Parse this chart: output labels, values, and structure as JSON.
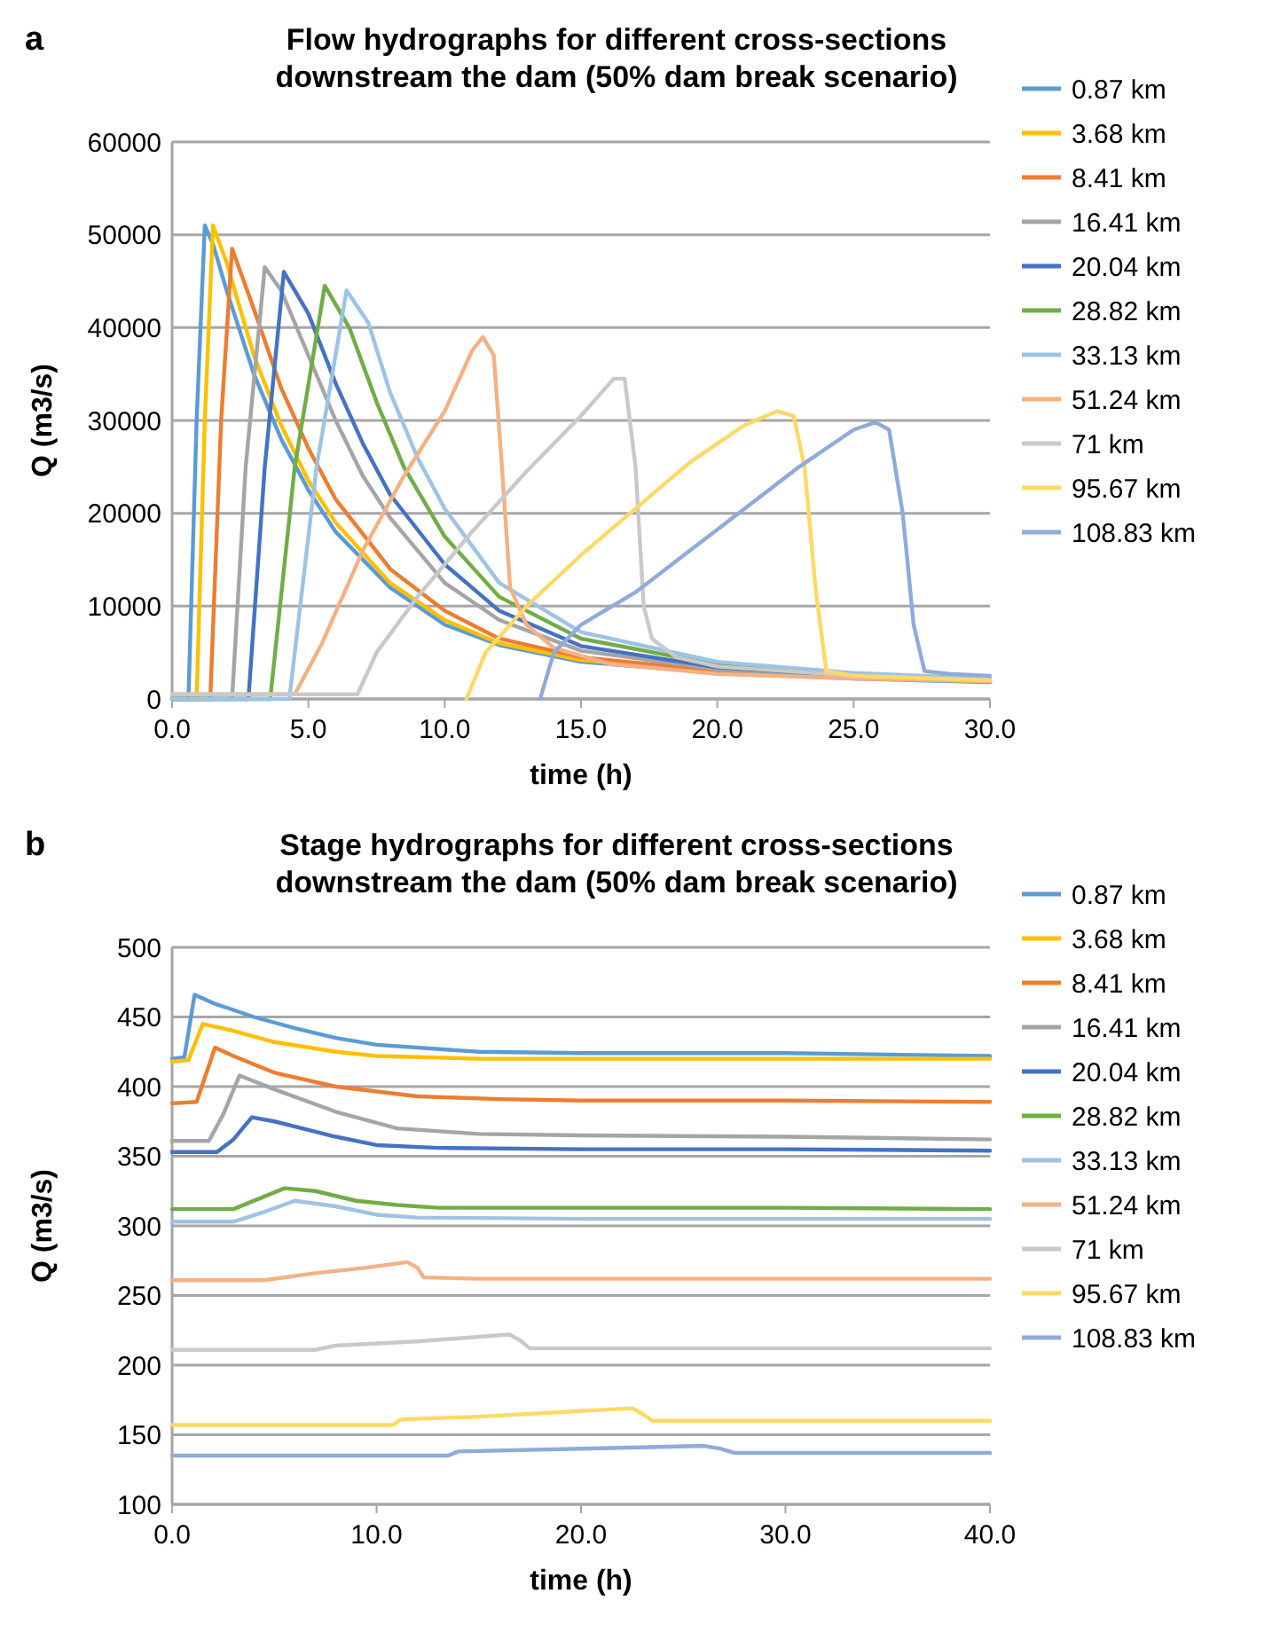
{
  "chart_data": [
    {
      "type": "line",
      "title": "Flow hydrographs for different cross-sections downstream the dam (50% dam break scenario)",
      "xlabel": "time (h)",
      "ylabel": "Q (m3/s)",
      "annotations": [
        "a"
      ],
      "xlim": [
        0,
        30
      ],
      "ylim": [
        0,
        60000
      ],
      "xticks": [
        {
          "value": 0,
          "label": "0.0"
        },
        {
          "value": 5,
          "label": "5.0"
        },
        {
          "value": 10,
          "label": "10.0"
        },
        {
          "value": 15,
          "label": "15.0"
        },
        {
          "value": 20,
          "label": "20.0"
        },
        {
          "value": 25,
          "label": "25.0"
        },
        {
          "value": 30,
          "label": "30.0"
        }
      ],
      "yticks": [
        0,
        10000,
        20000,
        30000,
        40000,
        50000,
        60000
      ],
      "grid": "y",
      "legend": "right",
      "series": [
        {
          "name": "0.87 km",
          "color": "#5b9bd5",
          "x": [
            0,
            0.6,
            0.9,
            1.2,
            1.5,
            2,
            3,
            4,
            5,
            6,
            8,
            10,
            12,
            15,
            20,
            25,
            30
          ],
          "values": [
            0,
            0,
            30000,
            51000,
            49000,
            44000,
            35000,
            28000,
            22500,
            18000,
            12000,
            8000,
            5800,
            4000,
            2800,
            2200,
            1800
          ]
        },
        {
          "name": "3.68 km",
          "color": "#ffc000",
          "x": [
            0,
            0.9,
            1.2,
            1.5,
            2,
            3,
            4,
            5,
            6,
            8,
            10,
            12,
            15,
            20,
            25,
            30
          ],
          "values": [
            0,
            0,
            30000,
            51000,
            47000,
            37000,
            29500,
            23500,
            19000,
            12500,
            8500,
            6000,
            4200,
            2900,
            2300,
            1900
          ]
        },
        {
          "name": "8.41 km",
          "color": "#ed7d31",
          "x": [
            0,
            1.4,
            1.8,
            2.2,
            3,
            4,
            5,
            6,
            8,
            10,
            12,
            15,
            20,
            25,
            30
          ],
          "values": [
            0,
            0,
            30000,
            48500,
            42000,
            33500,
            27000,
            21500,
            14000,
            9500,
            6500,
            4500,
            3000,
            2300,
            1900
          ]
        },
        {
          "name": "16.41 km",
          "color": "#a5a5a5",
          "x": [
            0,
            2.2,
            2.7,
            3.4,
            4,
            5,
            6,
            7,
            8,
            10,
            12,
            15,
            20,
            25,
            30
          ],
          "values": [
            0,
            0,
            25000,
            46500,
            44000,
            37000,
            30000,
            24000,
            19500,
            12500,
            8500,
            5200,
            3200,
            2400,
            2000
          ]
        },
        {
          "name": "20.04 km",
          "color": "#4472c4",
          "x": [
            0,
            2.8,
            3.4,
            4.1,
            5,
            6,
            7,
            8,
            10,
            12,
            15,
            20,
            25,
            30
          ],
          "values": [
            0,
            0,
            25000,
            46000,
            41500,
            34000,
            27500,
            22000,
            14500,
            9500,
            5700,
            3400,
            2500,
            2000
          ]
        },
        {
          "name": "28.82 km",
          "color": "#70ad47",
          "x": [
            0,
            3.6,
            4.5,
            5.6,
            6.5,
            7.5,
            8.5,
            10,
            12,
            15,
            20,
            25,
            30
          ],
          "values": [
            0,
            0,
            25000,
            44500,
            40000,
            32000,
            25000,
            17500,
            11000,
            6500,
            3700,
            2700,
            2100
          ]
        },
        {
          "name": "33.13 km",
          "color": "#9dc3e6",
          "x": [
            0,
            4.3,
            5.3,
            6.4,
            7.2,
            8,
            9,
            10,
            12,
            15,
            20,
            25,
            30
          ],
          "values": [
            0,
            0,
            25000,
            44000,
            40500,
            33000,
            26000,
            20500,
            12500,
            7200,
            4000,
            2800,
            2200
          ]
        },
        {
          "name": "51.24 km",
          "color": "#f4b183",
          "x": [
            0,
            4.5,
            5.5,
            7,
            8.5,
            10,
            11,
            11.4,
            11.8,
            12.1,
            12.4,
            13,
            14,
            16,
            20,
            25,
            30
          ],
          "values": [
            500,
            500,
            6000,
            16000,
            24000,
            31000,
            37500,
            39000,
            37000,
            25000,
            12000,
            8000,
            5500,
            3800,
            2700,
            2200,
            1900
          ]
        },
        {
          "name": "71 km",
          "color": "#c9c9c9",
          "x": [
            0,
            6.8,
            7.5,
            9,
            11,
            13,
            15,
            16.2,
            16.6,
            17,
            17.3,
            17.6,
            18.5,
            20,
            25,
            30
          ],
          "values": [
            500,
            500,
            5000,
            11000,
            18000,
            24500,
            30500,
            34500,
            34500,
            25000,
            10000,
            6500,
            4500,
            3500,
            2500,
            2000
          ]
        },
        {
          "name": "95.67 km",
          "color": "#ffd966",
          "x": [
            10.8,
            11.5,
            13,
            15,
            17,
            19,
            21,
            22.2,
            22.8,
            23.2,
            23.6,
            24,
            25,
            30
          ],
          "values": [
            0,
            5000,
            10000,
            15500,
            20500,
            25500,
            29500,
            31000,
            30500,
            25000,
            12000,
            3000,
            2500,
            2000
          ]
        },
        {
          "name": "108.83 km",
          "color": "#8faadc",
          "x": [
            13.5,
            14,
            15,
            17,
            19,
            21,
            23,
            25,
            25.8,
            26.3,
            26.8,
            27.2,
            27.6,
            28.5,
            30
          ],
          "values": [
            0,
            5000,
            8000,
            11500,
            16000,
            20500,
            25000,
            29000,
            29800,
            29000,
            20000,
            8000,
            3000,
            2700,
            2500
          ]
        }
      ]
    },
    {
      "type": "line",
      "title": "Stage hydrographs for different cross-sections downstream the dam (50% dam break scenario)",
      "xlabel": "time (h)",
      "ylabel": "Q (m3/s)",
      "annotations": [
        "b"
      ],
      "xlim": [
        0,
        40
      ],
      "ylim": [
        100,
        500
      ],
      "xticks": [
        {
          "value": 0,
          "label": "0.0"
        },
        {
          "value": 10,
          "label": "10.0"
        },
        {
          "value": 20,
          "label": "20.0"
        },
        {
          "value": 30,
          "label": "30.0"
        },
        {
          "value": 40,
          "label": "40.0"
        }
      ],
      "yticks": [
        100,
        150,
        200,
        250,
        300,
        350,
        400,
        450,
        500
      ],
      "grid": "y",
      "legend": "right",
      "series": [
        {
          "name": "0.87 km",
          "color": "#5b9bd5",
          "x": [
            0,
            0.6,
            1.1,
            2,
            4,
            6,
            8,
            10,
            15,
            20,
            30,
            40
          ],
          "values": [
            420,
            421,
            466,
            460,
            450,
            442,
            435,
            430,
            425,
            424,
            424,
            422
          ]
        },
        {
          "name": "3.68 km",
          "color": "#ffc000",
          "x": [
            0,
            0.8,
            1.5,
            3,
            5,
            8,
            10,
            15,
            20,
            30,
            40
          ],
          "values": [
            418,
            419,
            445,
            440,
            432,
            425,
            422,
            420,
            420,
            420,
            420
          ]
        },
        {
          "name": "8.41 km",
          "color": "#ed7d31",
          "x": [
            0,
            1.2,
            2.1,
            3,
            5,
            8,
            12,
            16,
            20,
            30,
            40
          ],
          "values": [
            388,
            389,
            428,
            422,
            410,
            400,
            393,
            391,
            390,
            390,
            389
          ]
        },
        {
          "name": "16.41 km",
          "color": "#a5a5a5",
          "x": [
            0,
            1.8,
            2.5,
            3.3,
            5,
            8,
            11,
            15,
            20,
            30,
            40
          ],
          "values": [
            361,
            361,
            380,
            408,
            398,
            382,
            370,
            366,
            365,
            364,
            362
          ]
        },
        {
          "name": "20.04 km",
          "color": "#4472c4",
          "x": [
            0,
            2.2,
            3,
            3.9,
            5,
            8,
            10,
            13,
            20,
            30,
            40
          ],
          "values": [
            353,
            353,
            362,
            378,
            375,
            364,
            358,
            356,
            355,
            355,
            354
          ]
        },
        {
          "name": "28.82 km",
          "color": "#70ad47",
          "x": [
            0,
            3,
            5.5,
            7,
            9,
            11,
            13,
            20,
            30,
            40
          ],
          "values": [
            312,
            312,
            327,
            325,
            318,
            315,
            313,
            313,
            313,
            312
          ]
        },
        {
          "name": "33.13 km",
          "color": "#9dc3e6",
          "x": [
            0,
            3,
            4.5,
            6,
            8,
            10,
            12,
            20,
            30,
            40
          ],
          "values": [
            303,
            303,
            310,
            318,
            314,
            308,
            306,
            305,
            305,
            305
          ]
        },
        {
          "name": "51.24 km",
          "color": "#f4b183",
          "x": [
            0,
            4.5,
            7,
            9.5,
            11.5,
            12,
            12.3,
            15,
            20,
            30,
            40
          ],
          "values": [
            261,
            261,
            266,
            270,
            274,
            270,
            263,
            262,
            262,
            262,
            262
          ]
        },
        {
          "name": "71 km",
          "color": "#c9c9c9",
          "x": [
            0,
            7,
            8,
            12,
            16.5,
            17,
            17.5,
            20,
            30,
            40
          ],
          "values": [
            211,
            211,
            214,
            217,
            222,
            218,
            212,
            212,
            212,
            212
          ]
        },
        {
          "name": "95.67 km",
          "color": "#ffd966",
          "x": [
            0,
            10.8,
            11.2,
            15,
            20,
            22.5,
            23,
            23.5,
            30,
            40
          ],
          "values": [
            157,
            157,
            161,
            163,
            167,
            169,
            165,
            160,
            160,
            160
          ]
        },
        {
          "name": "108.83 km",
          "color": "#8faadc",
          "x": [
            0,
            13.5,
            14,
            20,
            26,
            26.8,
            27.5,
            30,
            40
          ],
          "values": [
            135,
            135,
            138,
            140,
            142,
            140,
            137,
            137,
            137
          ]
        }
      ]
    }
  ]
}
